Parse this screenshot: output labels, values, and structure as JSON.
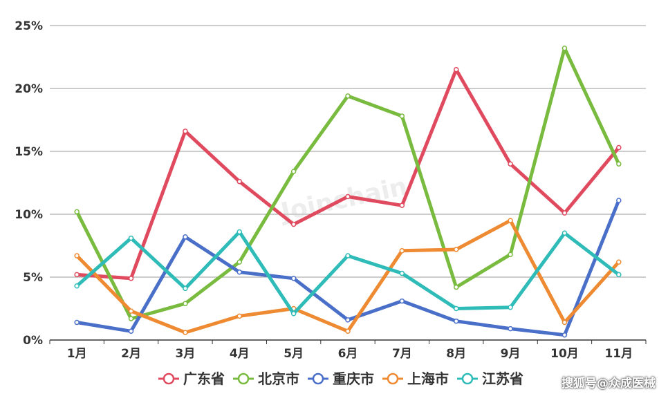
{
  "chart_data": {
    "type": "line",
    "title": "",
    "xlabel": "",
    "ylabel": "",
    "categories": [
      "1月",
      "2月",
      "3月",
      "4月",
      "5月",
      "6月",
      "7月",
      "8月",
      "9月",
      "10月",
      "11月"
    ],
    "ylim": [
      0,
      25
    ],
    "yticks": [
      "0%",
      "5%",
      "10%",
      "15%",
      "20%",
      "25%"
    ],
    "grid": true,
    "legend_position": "bottom",
    "series": [
      {
        "name": "广东省",
        "color": "#e04a5f",
        "values": [
          5.2,
          4.9,
          16.6,
          12.6,
          9.2,
          11.4,
          10.7,
          21.5,
          14.0,
          10.1,
          15.3
        ]
      },
      {
        "name": "北京市",
        "color": "#79bb3f",
        "values": [
          10.2,
          1.7,
          2.9,
          6.2,
          13.4,
          19.4,
          17.8,
          4.2,
          6.8,
          23.2,
          14.0
        ]
      },
      {
        "name": "重庆市",
        "color": "#4a6fc8",
        "values": [
          1.4,
          0.7,
          8.2,
          5.4,
          4.9,
          1.6,
          3.1,
          1.5,
          0.9,
          0.4,
          11.1
        ]
      },
      {
        "name": "上海市",
        "color": "#ee8a32",
        "values": [
          6.7,
          2.3,
          0.6,
          1.9,
          2.5,
          0.7,
          7.1,
          7.2,
          9.5,
          1.4,
          6.2
        ]
      },
      {
        "name": "江苏省",
        "color": "#2fbcb8",
        "values": [
          4.3,
          8.1,
          4.1,
          8.6,
          2.1,
          6.7,
          5.3,
          2.5,
          2.6,
          8.5,
          5.2
        ]
      }
    ]
  },
  "watermark": "Joinchain",
  "source_note": "搜狐号@众成医械"
}
